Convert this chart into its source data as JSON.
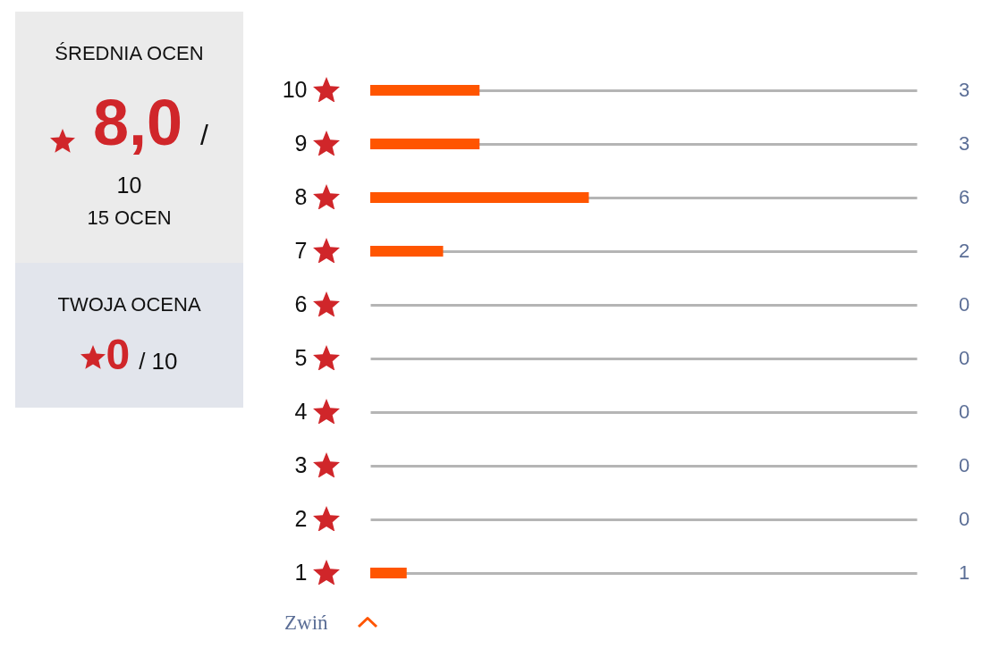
{
  "chart_data": [
    {
      "type": "other",
      "title": "ŚREDNIA OCEN",
      "annotations": [
        "8,0",
        "/",
        "10",
        "15 OCEN",
        "TWOJA OCENA",
        "0",
        "/ 10"
      ]
    },
    {
      "type": "bar",
      "orientation": "horizontal",
      "categories": [
        "10",
        "9",
        "8",
        "7",
        "6",
        "5",
        "4",
        "3",
        "2",
        "1"
      ],
      "values": [
        3,
        3,
        6,
        2,
        0,
        0,
        0,
        0,
        0,
        1
      ],
      "color": "#ff5500",
      "xlim": [
        0,
        15
      ],
      "grid": "y",
      "data_labels": true,
      "tick_labels": "y",
      "annotations": [
        "Zwiń"
      ]
    }
  ]
}
